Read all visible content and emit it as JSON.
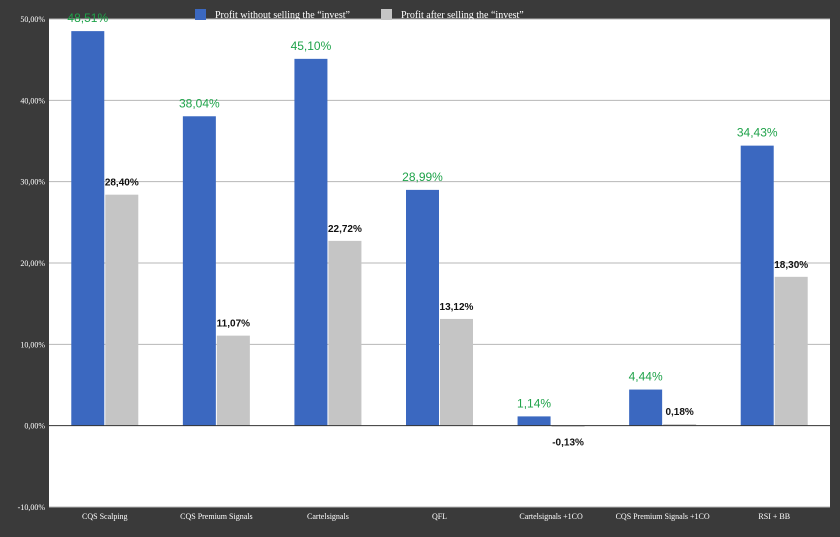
{
  "colors": {
    "frame": "#3a3a3a",
    "plot_bg": "#ffffff",
    "grid": "#b7b7b7",
    "zero_line": "#333333",
    "series1": "#3b68c0",
    "series2": "#c5c5c5",
    "label1": "#1fa34a",
    "label2": "#111111",
    "axis_text": "#ffffff"
  },
  "chart_data": {
    "type": "bar",
    "categories": [
      "CQS Scalping",
      "CQS Premium Signals",
      "Cartelsignals",
      "QFL",
      "Cartelsignals +1CO",
      "CQS Premium Signals +1CO",
      "RSI + BB"
    ],
    "series": [
      {
        "name": "Profit without selling the “invest”",
        "values": [
          48.51,
          38.04,
          45.1,
          28.99,
          1.14,
          4.44,
          34.43
        ],
        "labels": [
          "48,51%",
          "38,04%",
          "45,10%",
          "28,99%",
          "1,14%",
          "4,44%",
          "34,43%"
        ]
      },
      {
        "name": "Profit after selling the “invest”",
        "values": [
          28.4,
          11.07,
          22.72,
          13.12,
          -0.13,
          0.18,
          18.3
        ],
        "labels": [
          "28,40%",
          "11,07%",
          "22,72%",
          "13,12%",
          "-0,13%",
          "0,18%",
          "18,30%"
        ]
      }
    ],
    "ylim": [
      -10,
      50
    ],
    "yticks": [
      -10,
      0,
      10,
      20,
      30,
      40,
      50
    ],
    "ytick_labels": [
      "-10,00%",
      "0,00%",
      "10,00%",
      "20,00%",
      "30,00%",
      "40,00%",
      "50,00%"
    ],
    "grid": true,
    "legend_position": "top-center"
  }
}
